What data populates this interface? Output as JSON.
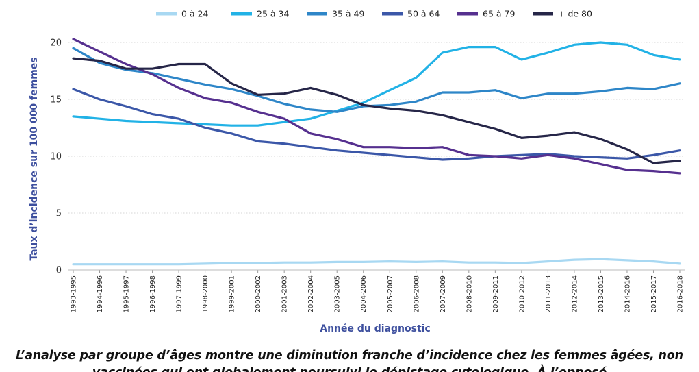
{
  "chart_data": {
    "type": "line",
    "xlabel": "Année du diagnostic",
    "ylabel": "Taux d’incidence sur 100 000 femmes",
    "ylim": [
      0,
      20
    ],
    "yticks": [
      0,
      5,
      10,
      15,
      20
    ],
    "grid": "horizontal dotted",
    "legend": "top-center",
    "categories": [
      "1993-1995",
      "1994-1996",
      "1995-1997",
      "1996-1998",
      "1997-1999",
      "1998-2000",
      "1999-2001",
      "2000-2002",
      "2001-2003",
      "2002-2004",
      "2003-2005",
      "2004-2006",
      "2005-2007",
      "2006-2008",
      "2007-2009",
      "2008-2010",
      "2009-2011",
      "2010-2012",
      "2011-2013",
      "2012-2014",
      "2013-2015",
      "2014-2016",
      "2015-2017",
      "2016-2018"
    ],
    "series": [
      {
        "name": "0 à 24",
        "color": "#a8d8f2",
        "values": [
          0.5,
          0.5,
          0.5,
          0.5,
          0.5,
          0.55,
          0.6,
          0.6,
          0.65,
          0.65,
          0.7,
          0.7,
          0.75,
          0.7,
          0.75,
          0.65,
          0.65,
          0.6,
          0.75,
          0.9,
          0.95,
          0.85,
          0.75,
          0.55
        ]
      },
      {
        "name": "25 à 34",
        "color": "#22b2e6",
        "values": [
          13.5,
          13.3,
          13.1,
          13.0,
          12.9,
          12.8,
          12.7,
          12.7,
          13.0,
          13.3,
          14.0,
          14.7,
          15.8,
          16.9,
          19.1,
          19.6,
          19.6,
          18.5,
          19.1,
          19.8,
          20.0,
          19.8,
          18.9,
          18.5
        ]
      },
      {
        "name": "35 à 49",
        "color": "#2e86c8",
        "values": [
          19.5,
          18.2,
          17.6,
          17.3,
          16.8,
          16.3,
          15.9,
          15.3,
          14.6,
          14.1,
          13.9,
          14.4,
          14.5,
          14.8,
          15.6,
          15.6,
          15.8,
          15.1,
          15.5,
          15.5,
          15.7,
          16.0,
          15.9,
          16.4
        ]
      },
      {
        "name": "50 à 64",
        "color": "#3b57a8",
        "values": [
          15.9,
          15.0,
          14.4,
          13.7,
          13.3,
          12.5,
          12.0,
          11.3,
          11.1,
          10.8,
          10.5,
          10.3,
          10.1,
          9.9,
          9.7,
          9.8,
          10.0,
          10.1,
          10.2,
          10.0,
          9.9,
          9.8,
          10.1,
          10.5
        ]
      },
      {
        "name": "65 à 79",
        "color": "#56308f",
        "values": [
          20.3,
          19.2,
          18.1,
          17.2,
          16.0,
          15.1,
          14.7,
          13.9,
          13.3,
          12.0,
          11.5,
          10.8,
          10.8,
          10.7,
          10.8,
          10.1,
          10.0,
          9.8,
          10.1,
          9.8,
          9.3,
          8.8,
          8.7,
          8.5
        ]
      },
      {
        "name": "+ de 80",
        "color": "#262648",
        "values": [
          18.6,
          18.4,
          17.7,
          17.7,
          18.1,
          18.1,
          16.4,
          15.4,
          15.5,
          16.0,
          15.4,
          14.5,
          14.2,
          14.0,
          13.6,
          13.0,
          12.4,
          11.6,
          11.8,
          12.1,
          11.5,
          10.6,
          9.4,
          9.6
        ]
      }
    ]
  },
  "caption": "L’analyse par groupe d’âges montre une diminution franche d’incidence chez les femmes âgées, non vaccinées qui ont globalement poursuivi le dépistage cytologique. À l’opposé"
}
